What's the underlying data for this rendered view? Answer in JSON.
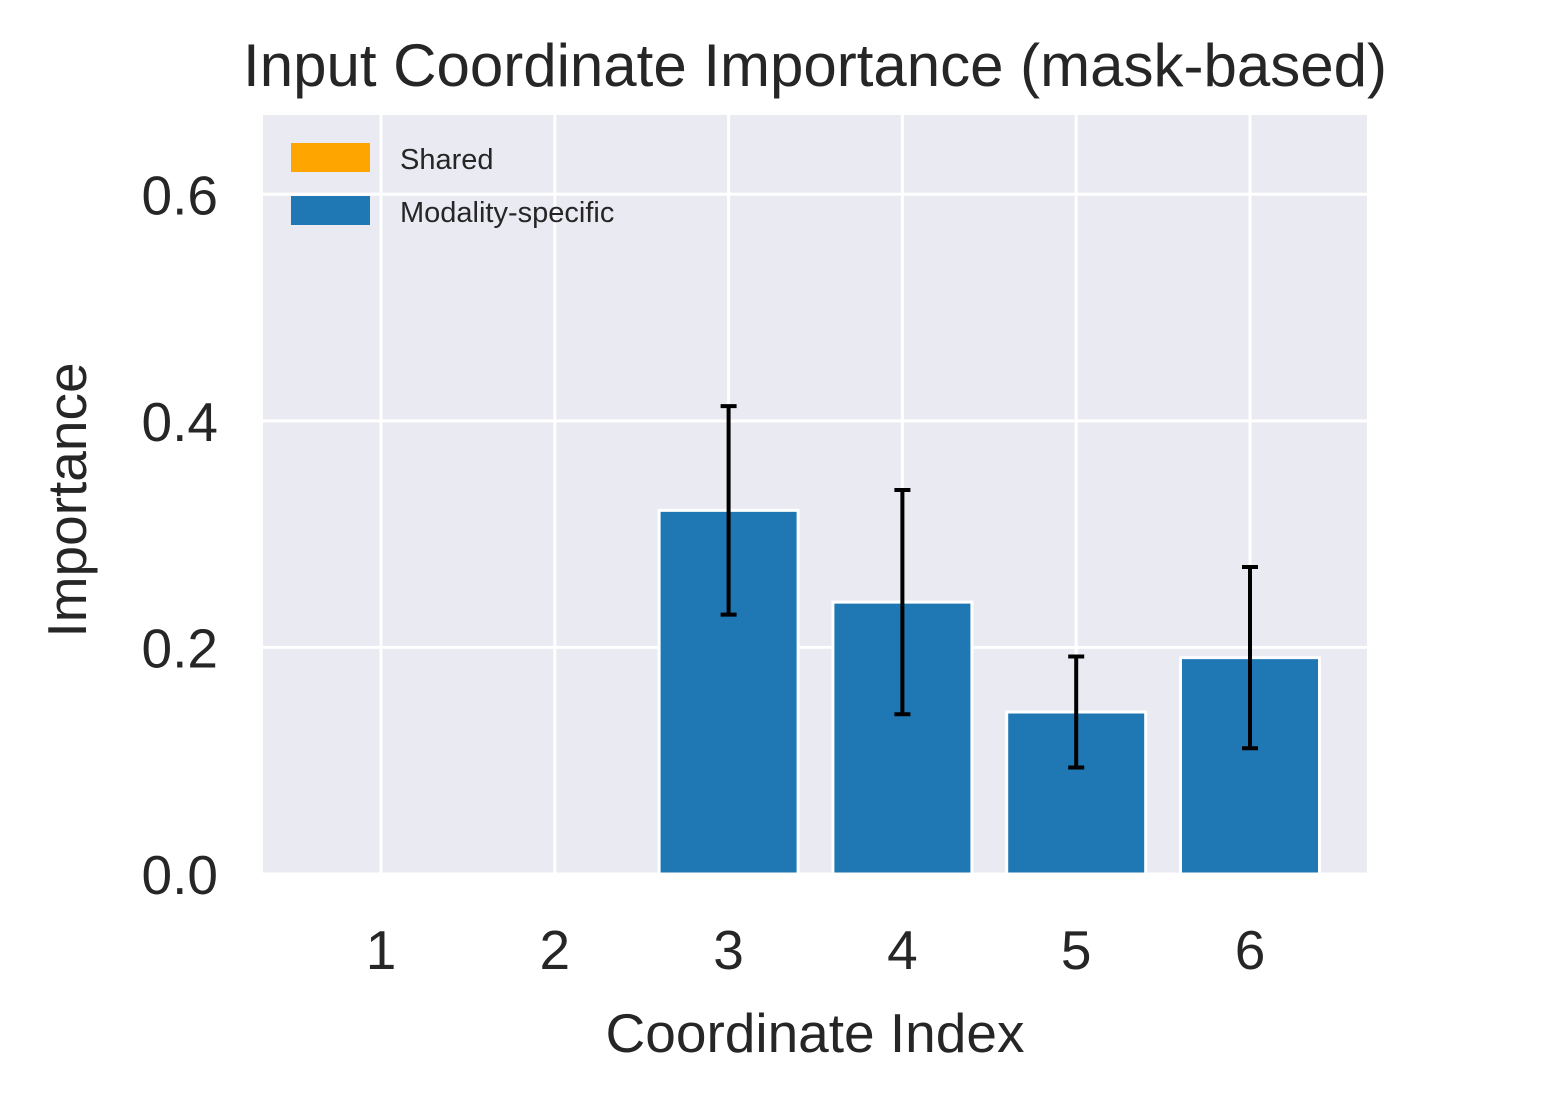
{
  "chart_data": {
    "type": "bar",
    "title": "Input Coordinate Importance (mask-based)",
    "xlabel": "Coordinate Index",
    "ylabel": "Importance",
    "categories": [
      "1",
      "2",
      "3",
      "4",
      "5",
      "6"
    ],
    "series": [
      {
        "name": "Shared",
        "color": "#ffa500",
        "values": [
          0.0,
          0.0,
          0.0,
          0.0,
          0.0,
          0.0
        ],
        "errors": [
          0.0,
          0.0,
          0.0,
          0.0,
          0.0,
          0.0
        ]
      },
      {
        "name": "Modality-specific",
        "color": "#1f77b4",
        "values": [
          0.0,
          0.0,
          0.321,
          0.24,
          0.143,
          0.191
        ],
        "errors": [
          0.0,
          0.0,
          0.092,
          0.099,
          0.049,
          0.08
        ]
      }
    ],
    "ylim": [
      0,
      0.67
    ],
    "yticks": [
      0.0,
      0.2,
      0.4,
      0.6
    ],
    "ytick_labels": [
      "0.0",
      "0.2",
      "0.4",
      "0.6"
    ],
    "grid": true,
    "legend": "top-left",
    "background": "#eaeaf2"
  }
}
